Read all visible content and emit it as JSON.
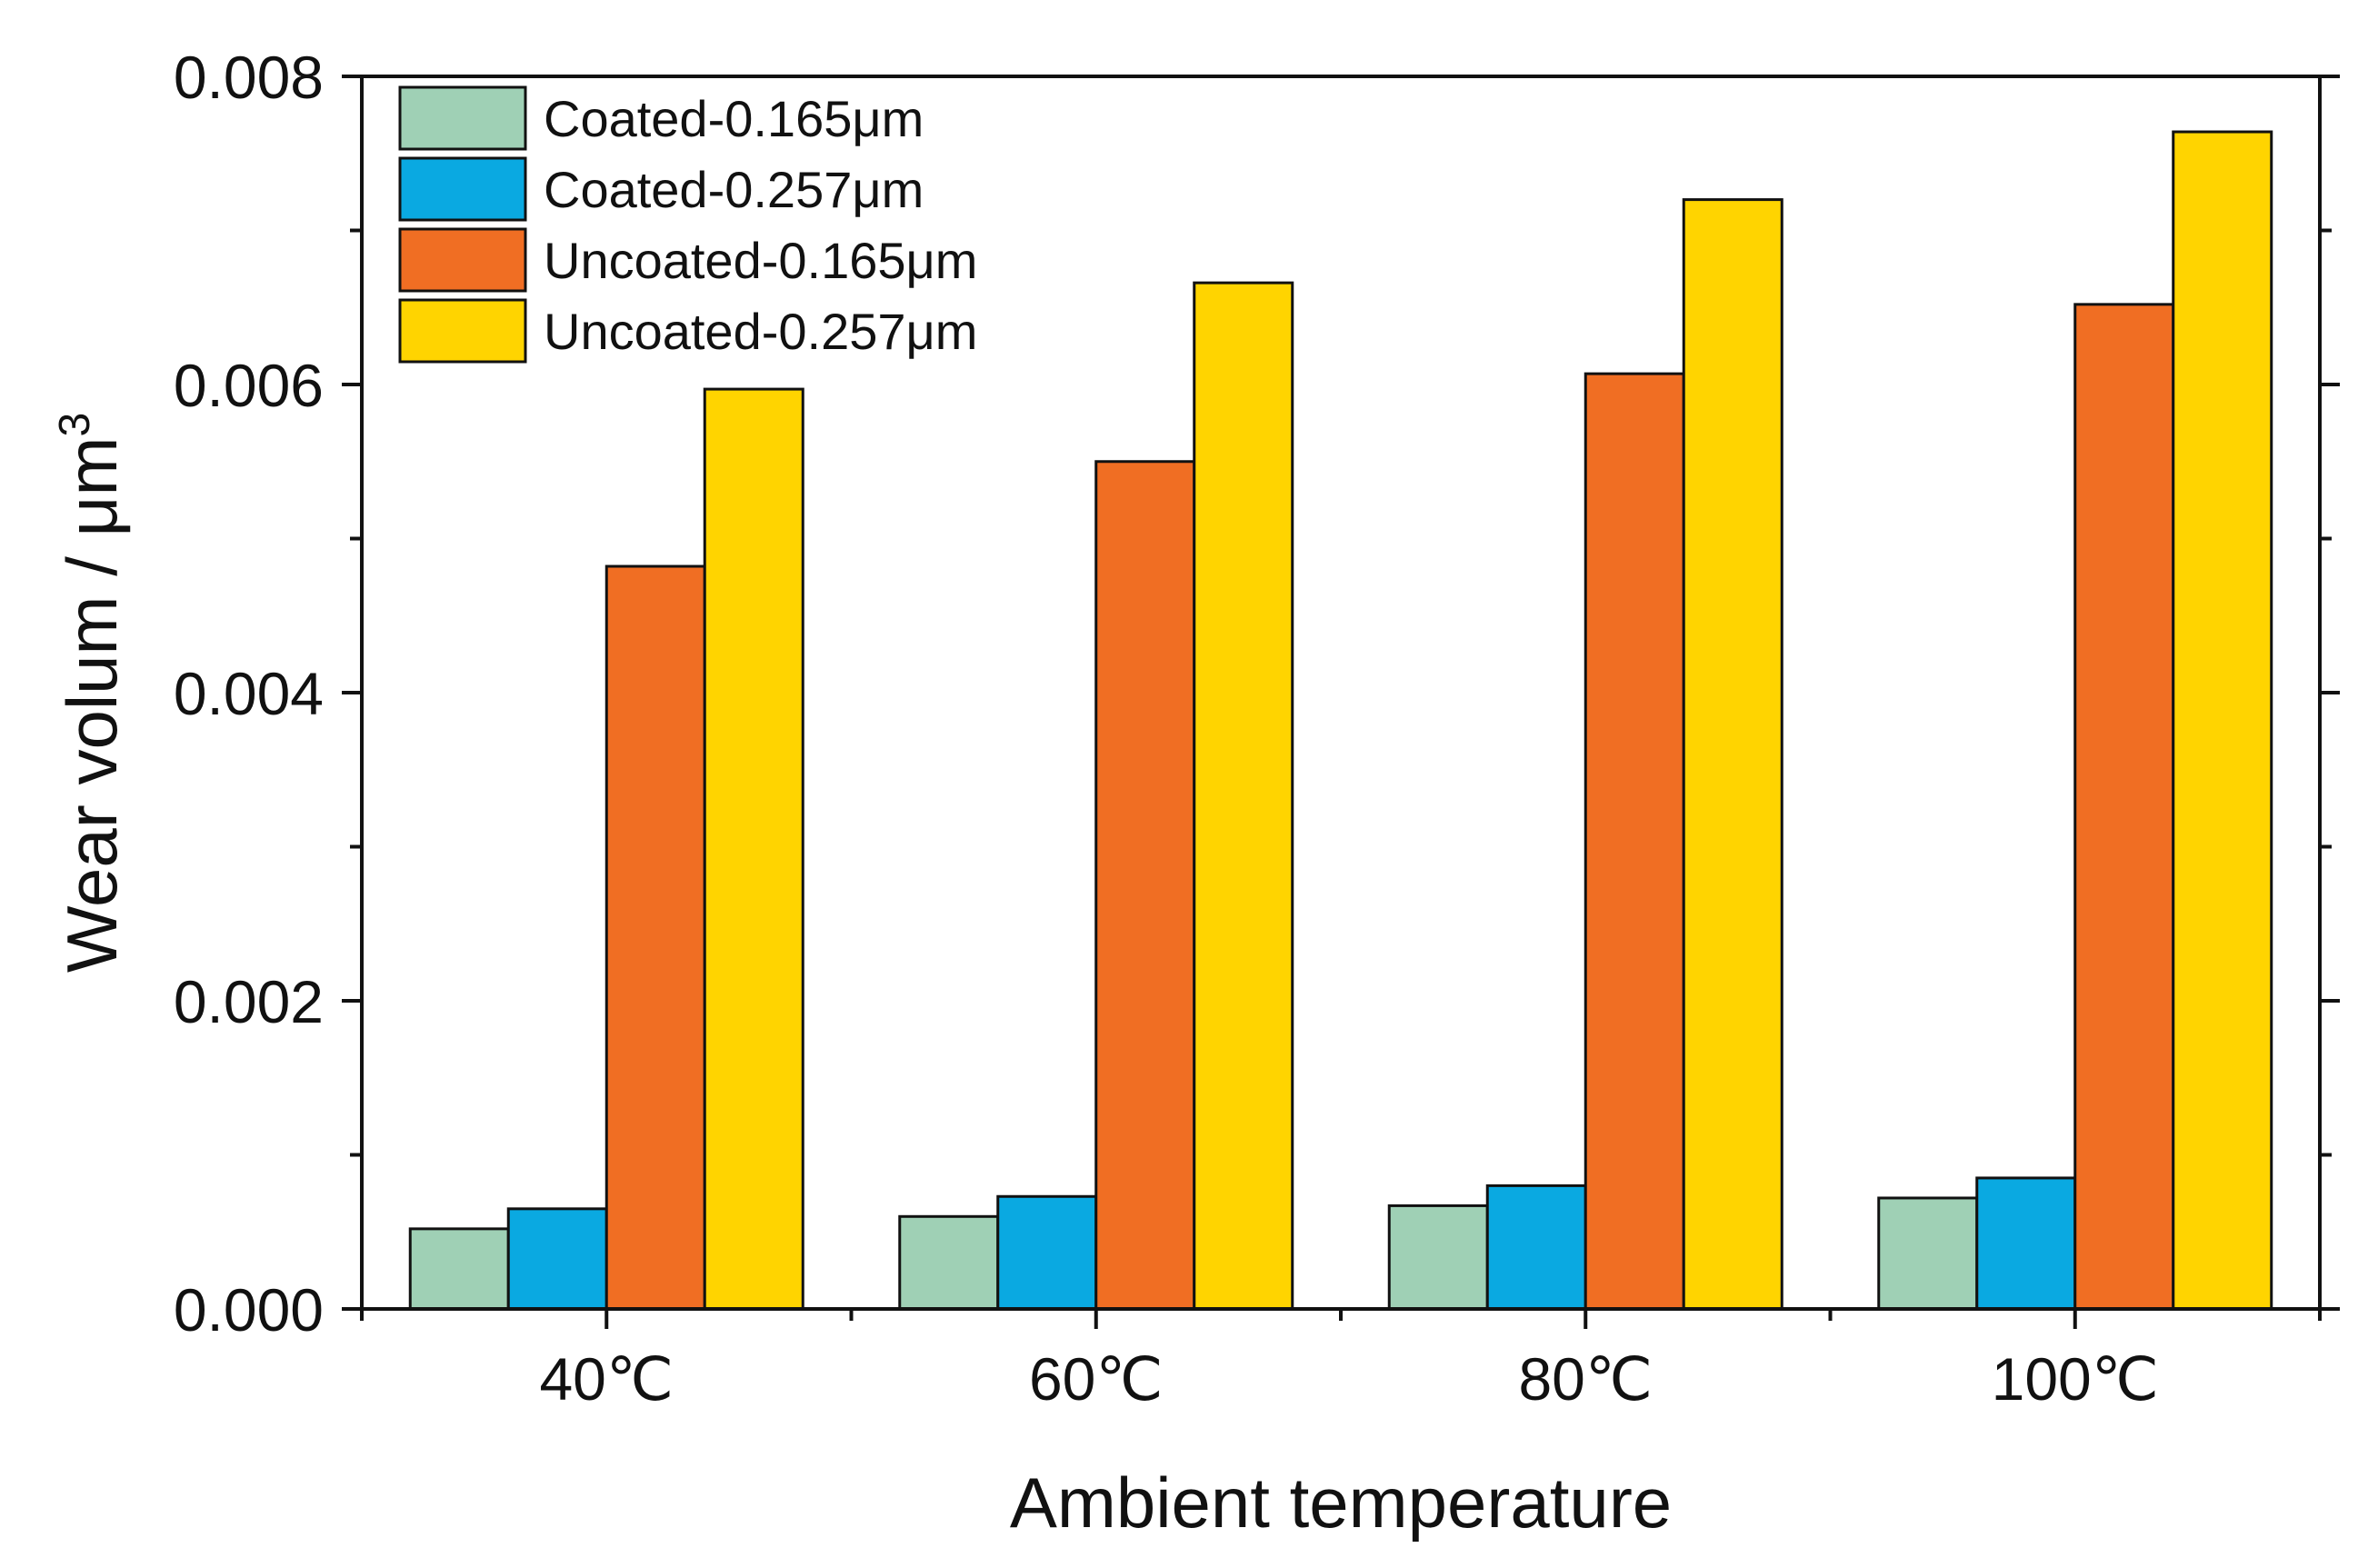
{
  "chart_data": {
    "type": "bar",
    "title": "",
    "xlabel": "Ambient temperature",
    "ylabel": "Wear volum / μm",
    "ylabel_superscript": "3",
    "ylim": [
      0,
      0.008
    ],
    "yticks": [
      "0.000",
      "0.002",
      "0.004",
      "0.006",
      "0.008"
    ],
    "grid": false,
    "legend_position": "top-left",
    "categories": [
      "40℃",
      "60℃",
      "80℃",
      "100℃"
    ],
    "series": [
      {
        "name": "Coated-0.165μm",
        "color": "#9fd0b5",
        "values": [
          0.00052,
          0.0006,
          0.00067,
          0.00072
        ]
      },
      {
        "name": "Coated-0.257μm",
        "color": "#0aa9e1",
        "values": [
          0.00065,
          0.00073,
          0.0008,
          0.00085
        ]
      },
      {
        "name": "Uncoated-0.165μm",
        "color": "#f06e23",
        "values": [
          0.00482,
          0.0055,
          0.00607,
          0.00652
        ]
      },
      {
        "name": "Uncoated-0.257μm",
        "color": "#ffd400",
        "values": [
          0.00597,
          0.00666,
          0.0072,
          0.00764
        ]
      }
    ]
  }
}
